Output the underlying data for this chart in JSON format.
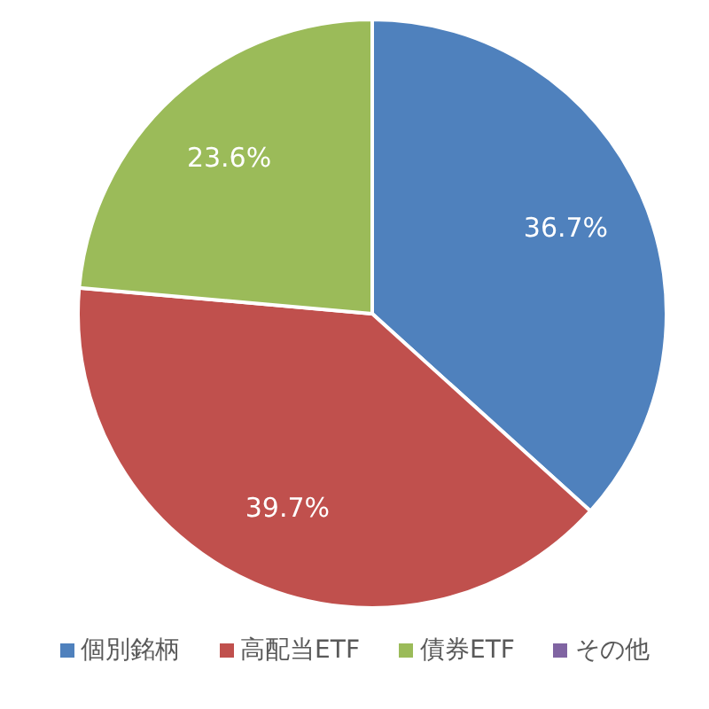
{
  "chart_data": {
    "type": "pie",
    "categories": [
      "個別銘柄",
      "高配当ETF",
      "債券ETF",
      "その他"
    ],
    "values": [
      36.7,
      39.7,
      23.6,
      0
    ],
    "colors": [
      "#4f81bd",
      "#c0504d",
      "#9bbb59",
      "#8064a2"
    ],
    "value_labels": [
      "36.7%",
      "39.7%",
      "23.6%",
      null
    ],
    "legend": "bottom"
  }
}
